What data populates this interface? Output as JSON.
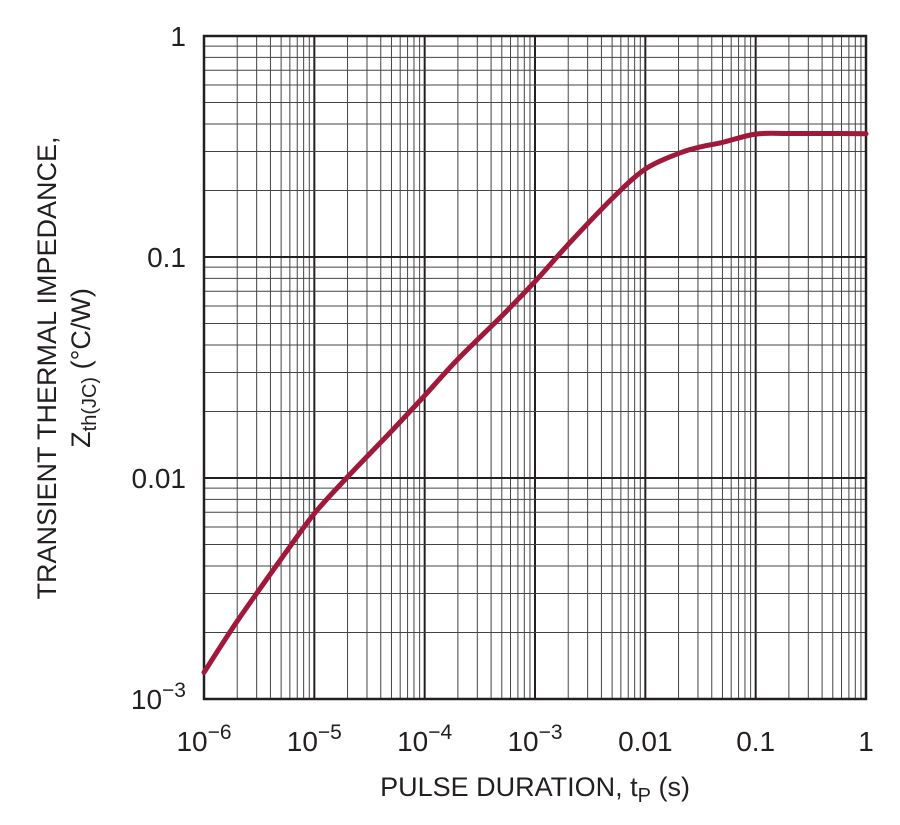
{
  "chart_data": {
    "type": "line",
    "title": "",
    "xlabel": {
      "main": "PULSE DURATION, t",
      "sub": "P",
      "suffix": " (s)"
    },
    "ylabel": {
      "line1": "TRANSIENT THERMAL IMPEDANCE,",
      "line2_main": "Z",
      "line2_sub": "th(JC)",
      "line2_suffix": " (°C/W)"
    },
    "x_scale": "log",
    "y_scale": "log",
    "xlim": [
      1e-06,
      1
    ],
    "ylim": [
      0.001,
      1
    ],
    "grid": true,
    "x_ticks": [
      {
        "value": 1e-06,
        "base": "10",
        "exp": "−6"
      },
      {
        "value": 1e-05,
        "base": "10",
        "exp": "−5"
      },
      {
        "value": 0.0001,
        "base": "10",
        "exp": "−4"
      },
      {
        "value": 0.001,
        "base": "10",
        "exp": "−3"
      },
      {
        "value": 0.01,
        "base": "0.01",
        "exp": ""
      },
      {
        "value": 0.1,
        "base": "0.1",
        "exp": ""
      },
      {
        "value": 1,
        "base": "1",
        "exp": ""
      }
    ],
    "y_ticks": [
      {
        "value": 0.001,
        "base": "10",
        "exp": "−3"
      },
      {
        "value": 0.01,
        "base": "0.01",
        "exp": ""
      },
      {
        "value": 0.1,
        "base": "0.1",
        "exp": ""
      },
      {
        "value": 1,
        "base": "1",
        "exp": ""
      }
    ],
    "series": [
      {
        "color": "#a0183a",
        "points": [
          [
            1e-06,
            0.00132
          ],
          [
            2e-06,
            0.00225
          ],
          [
            5e-06,
            0.0043
          ],
          [
            1e-05,
            0.0069
          ],
          [
            2e-05,
            0.0101
          ],
          [
            5e-05,
            0.0163
          ],
          [
            0.0001,
            0.0236
          ],
          [
            0.0002,
            0.0345
          ],
          [
            0.0005,
            0.0541
          ],
          [
            0.001,
            0.0774
          ],
          [
            0.002,
            0.114
          ],
          [
            0.005,
            0.184
          ],
          [
            0.01,
            0.25
          ],
          [
            0.02,
            0.294
          ],
          [
            0.03,
            0.313
          ],
          [
            0.05,
            0.33
          ],
          [
            0.1,
            0.36
          ],
          [
            0.2,
            0.362
          ],
          [
            0.5,
            0.362
          ],
          [
            1,
            0.361
          ]
        ]
      }
    ]
  }
}
